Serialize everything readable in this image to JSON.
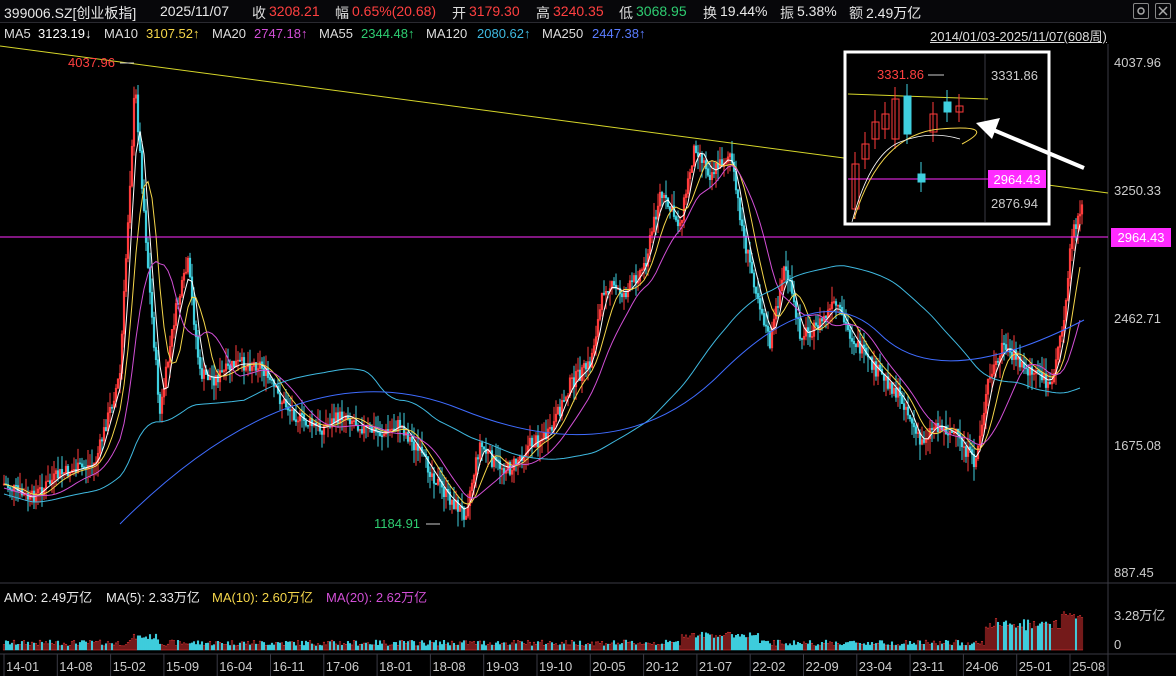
{
  "header": {
    "symbol": "399006.SZ[创业板指]",
    "date": "2025/11/07",
    "close_label": "收",
    "close_value": "3208.21",
    "change_label": "幅",
    "change_value": "0.65%(20.68)",
    "open_label": "开",
    "open_value": "3179.30",
    "high_label": "高",
    "high_value": "3240.35",
    "low_label": "低",
    "low_value": "3068.95",
    "turnover_label": "换",
    "turnover_value": "19.44%",
    "amplitude_label": "振",
    "amplitude_value": "5.38%",
    "amount_label": "额",
    "amount_value": "2.49万亿"
  },
  "ma_line": {
    "ma5_label": "MA5",
    "ma5_value": "3123.19↓",
    "ma10_label": "MA10",
    "ma10_value": "3107.52↑",
    "ma20_label": "MA20",
    "ma20_value": "2747.18↑",
    "ma55_label": "MA55",
    "ma55_value": "2344.48↑",
    "ma120_label": "MA120",
    "ma120_value": "2080.62↑",
    "ma250_label": "MA250",
    "ma250_value": "2447.38↑",
    "range": "2014/01/03-2025/11/07(608周)"
  },
  "price_axis": [
    "4037.96",
    "3250.33",
    "2462.71",
    "1675.08",
    "887.45"
  ],
  "price_tag": "2964.43",
  "annotations": {
    "high_label": "4037.96",
    "low_label": "1184.91"
  },
  "inset": {
    "high_label": "3331.86",
    "axis_top": "3331.86",
    "axis_tag": "2964.43",
    "axis_bottom": "2876.94"
  },
  "amo": {
    "amo_label": "AMO: 2.49万亿",
    "ma5_label": "MA(5): 2.33万亿",
    "ma10_label": "MA(10): 2.60万亿",
    "ma20_label": "MA(20): 2.62万亿",
    "axis_top": "3.28万亿",
    "axis_zero": "0"
  },
  "x_axis": [
    "14-01",
    "14-08",
    "15-02",
    "15-09",
    "16-04",
    "16-11",
    "17-06",
    "18-01",
    "18-08",
    "19-03",
    "19-10",
    "20-05",
    "20-12",
    "21-07",
    "22-02",
    "22-09",
    "23-04",
    "23-11",
    "24-06",
    "25-01",
    "25-08"
  ],
  "colors": {
    "up": "#ff3b3b",
    "down": "#3fd0e0",
    "ma5": "#ffffff",
    "ma10": "#f5d64a",
    "ma20": "#d24fd6",
    "ma55": "#2ecc71",
    "ma120": "#3fb9e0",
    "ma250": "#3f6cff",
    "trend": "#d6d62a",
    "hline": "#ff2bff"
  },
  "icons": [
    "settings-icon",
    "close-icon"
  ]
}
